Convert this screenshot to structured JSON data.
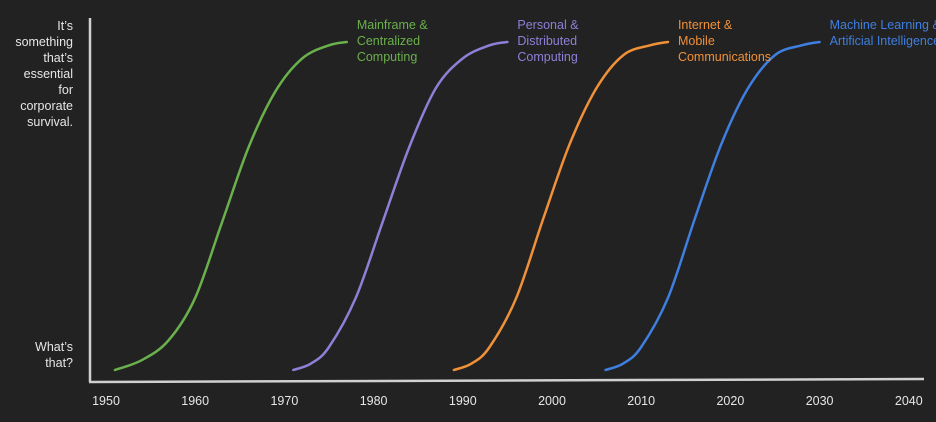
{
  "chart_data": {
    "type": "line",
    "title": "",
    "xlabel": "",
    "ylabel": "",
    "xlim": [
      1948,
      2041
    ],
    "ylim": [
      0,
      1
    ],
    "grid": false,
    "x_ticks": [
      "1950",
      "1960",
      "1970",
      "1980",
      "1990",
      "2000",
      "2010",
      "2020",
      "2030",
      "2040"
    ],
    "y_labels": {
      "top": [
        "It’s",
        "something",
        "that’s",
        "essential",
        "for",
        "corporate",
        "survival."
      ],
      "bottom": [
        "What’s",
        "that?"
      ]
    },
    "series": [
      {
        "name": "Mainframe & Centralized Computing",
        "label_lines": [
          "Mainframe &",
          "Centralized",
          "Computing"
        ],
        "color": "#6ab04c",
        "x": [
          1951,
          1954,
          1957,
          1960,
          1963,
          1966,
          1969,
          1972,
          1975,
          1977
        ],
        "y": [
          0.0,
          0.03,
          0.09,
          0.22,
          0.45,
          0.68,
          0.85,
          0.95,
          0.99,
          1.0
        ]
      },
      {
        "name": "Personal & Distributed Computing",
        "label_lines": [
          "Personal &",
          "Distributed",
          "Computing"
        ],
        "color": "#8f7fd6",
        "x": [
          1971,
          1973,
          1975,
          1978,
          1981,
          1984,
          1987,
          1990,
          1993,
          1995
        ],
        "y": [
          0.0,
          0.02,
          0.07,
          0.22,
          0.45,
          0.68,
          0.86,
          0.95,
          0.99,
          1.0
        ]
      },
      {
        "name": "Internet & Mobile Communications",
        "label_lines": [
          "Internet &",
          "Mobile",
          "Communications"
        ],
        "color": "#f0913a",
        "x": [
          1989,
          1991,
          1993,
          1996,
          1999,
          2002,
          2005,
          2008,
          2011,
          2013
        ],
        "y": [
          0.0,
          0.02,
          0.07,
          0.22,
          0.46,
          0.69,
          0.86,
          0.96,
          0.99,
          1.0
        ]
      },
      {
        "name": "Machine Learning & Artificial Intelligence",
        "label_lines": [
          "Machine Learning &",
          "Artificial Intelligence"
        ],
        "color": "#3f7fe0",
        "x": [
          2006,
          2008,
          2010,
          2013,
          2016,
          2019,
          2022,
          2025,
          2028,
          2030
        ],
        "y": [
          0.0,
          0.02,
          0.07,
          0.22,
          0.46,
          0.69,
          0.86,
          0.96,
          0.99,
          1.0
        ]
      }
    ]
  }
}
